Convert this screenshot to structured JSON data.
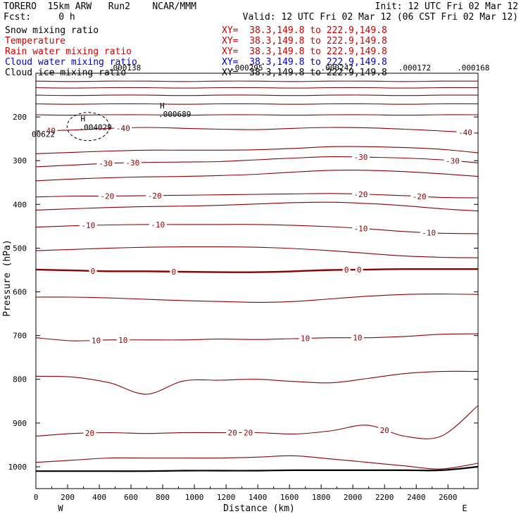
{
  "header": {
    "model": "TORERO  15km ARW   Run2    NCAR/MMM",
    "init": "Init: 12 UTC Fri 02 Mar 12",
    "fcst": "Fcst:     0 h",
    "valid": "Valid: 12 UTC Fri 02 Mar 12 (06 CST Fri 02 Mar 12)"
  },
  "fields": [
    {
      "name": "Snow mixing ratio",
      "xy": "XY=  38.3,149.8 to 222.9,149.8",
      "color": "#000000"
    },
    {
      "name": "Temperature",
      "xy": "XY=  38.3,149.8 to 222.9,149.8",
      "color": "#cc0000"
    },
    {
      "name": "Rain water mixing ratio",
      "xy": "XY=  38.3,149.8 to 222.9,149.8",
      "color": "#cc0000"
    },
    {
      "name": "Cloud water mixing ratio",
      "xy": "XY=  38.3,149.8 to 222.9,149.8",
      "color": "#0000cc"
    },
    {
      "name": "Cloud ice mixing ratio",
      "xy": "XY=  38.3,149.8 to 222.9,149.8",
      "color": "#000000"
    }
  ],
  "chart_data": {
    "type": "line",
    "title": "",
    "xlabel": "Distance (km)",
    "ylabel": "Pressure (hPa)",
    "xlim": [
      0,
      2790
    ],
    "ylim": [
      1050,
      100
    ],
    "x_ticks": [
      0,
      200,
      400,
      600,
      800,
      1000,
      1200,
      1400,
      1600,
      1800,
      2000,
      2200,
      2400,
      2600
    ],
    "y_ticks": [
      200,
      300,
      400,
      500,
      600,
      700,
      800,
      900,
      1000
    ],
    "x_end_labels": {
      "left": "W",
      "right": "E"
    },
    "temperature_contours": [
      {
        "p": [
          232,
          230,
          226,
          224,
          226,
          228,
          229,
          226,
          224,
          225,
          228,
          232,
          237
        ],
        "labels": [
          {
            "x": 80,
            "text": "-40"
          },
          {
            "x": 550,
            "text": "-40"
          },
          {
            "x": 2710,
            "text": "-40"
          }
        ]
      },
      {
        "p": [
          284,
          281,
          278,
          276,
          276,
          276,
          275,
          272,
          268,
          268,
          270,
          274,
          282
        ],
        "labels": []
      },
      {
        "p": [
          314,
          310,
          306,
          304,
          303,
          302,
          298,
          294,
          291,
          292,
          294,
          298,
          305
        ],
        "labels": [
          {
            "x": 440,
            "text": "-30"
          },
          {
            "x": 610,
            "text": "-30"
          },
          {
            "x": 2050,
            "text": "-30"
          },
          {
            "x": 2630,
            "text": "-30"
          }
        ]
      },
      {
        "p": [
          346,
          342,
          339,
          337,
          336,
          334,
          331,
          326,
          322,
          322,
          325,
          330,
          336
        ],
        "labels": []
      },
      {
        "p": [
          383,
          381,
          381,
          380,
          379,
          378,
          377,
          376,
          375,
          377,
          380,
          384,
          385
        ],
        "labels": [
          {
            "x": 450,
            "text": "-20"
          },
          {
            "x": 750,
            "text": "-20"
          },
          {
            "x": 2050,
            "text": "-20"
          },
          {
            "x": 2420,
            "text": "-20"
          }
        ]
      },
      {
        "p": [
          413,
          410,
          407,
          405,
          404,
          402,
          399,
          396,
          395,
          398,
          403,
          410,
          415
        ],
        "labels": []
      },
      {
        "p": [
          452,
          449,
          447,
          446,
          446,
          446,
          446,
          448,
          451,
          456,
          462,
          466,
          467
        ],
        "labels": [
          {
            "x": 330,
            "text": "-10"
          },
          {
            "x": 770,
            "text": "-10"
          },
          {
            "x": 2050,
            "text": "-10"
          },
          {
            "x": 2480,
            "text": "-10"
          }
        ]
      },
      {
        "p": [
          506,
          503,
          500,
          498,
          497,
          497,
          498,
          501,
          506,
          512,
          518,
          521,
          522
        ],
        "labels": []
      },
      {
        "p": [
          549,
          551,
          553,
          553,
          554,
          555,
          555,
          553,
          550,
          549,
          548,
          548,
          548
        ],
        "labels": [
          {
            "x": 360,
            "text": "0"
          },
          {
            "x": 870,
            "text": "0"
          },
          {
            "x": 1960,
            "text": "0"
          },
          {
            "x": 2040,
            "text": "0"
          }
        ]
      },
      {
        "p": [
          612,
          612,
          614,
          617,
          620,
          622,
          624,
          622,
          616,
          610,
          606,
          605,
          606
        ],
        "labels": []
      },
      {
        "p": [
          705,
          712,
          710,
          710,
          710,
          708,
          709,
          707,
          705,
          705,
          702,
          697,
          696
        ],
        "labels": [
          {
            "x": 380,
            "text": "10"
          },
          {
            "x": 550,
            "text": "10"
          },
          {
            "x": 1700,
            "text": "10"
          },
          {
            "x": 2030,
            "text": "10"
          }
        ]
      },
      {
        "p": [
          793,
          795,
          808,
          834,
          804,
          802,
          800,
          805,
          808,
          798,
          787,
          782,
          782
        ],
        "labels": []
      },
      {
        "p": [
          930,
          924,
          922,
          924,
          922,
          922,
          922,
          925,
          918,
          905,
          930,
          930,
          860
        ],
        "labels": [
          {
            "x": 340,
            "text": "20"
          },
          {
            "x": 1240,
            "text": "20"
          },
          {
            "x": 1340,
            "text": "20"
          },
          {
            "x": 2200,
            "text": "20"
          }
        ]
      },
      {
        "p": [
          990,
          985,
          980,
          980,
          980,
          980,
          978,
          975,
          982,
          990,
          998,
          1005,
          992
        ],
        "labels": []
      }
    ],
    "cloud_ice_maxima": [
      {
        "x": 800,
        "p": 190,
        "label": "H",
        "value": ".000689"
      },
      {
        "x": 300,
        "p": 220,
        "label": "H",
        "value": ".004029"
      },
      {
        "x": 0,
        "p": 236,
        "label": "",
        "value": "00622"
      }
    ],
    "top_labels": [
      {
        "x": 560,
        "text": ".000138"
      },
      {
        "x": 1330,
        "text": ".000295"
      },
      {
        "x": 1900,
        "text": ".000247"
      },
      {
        "x": 2390,
        "text": ".000172"
      },
      {
        "x": 2760,
        "text": ".000168"
      }
    ],
    "surface_p": [
      1010,
      1010,
      1010,
      1010,
      1009,
      1009,
      1009,
      1008,
      1008,
      1008,
      1008,
      1008,
      1000
    ]
  }
}
